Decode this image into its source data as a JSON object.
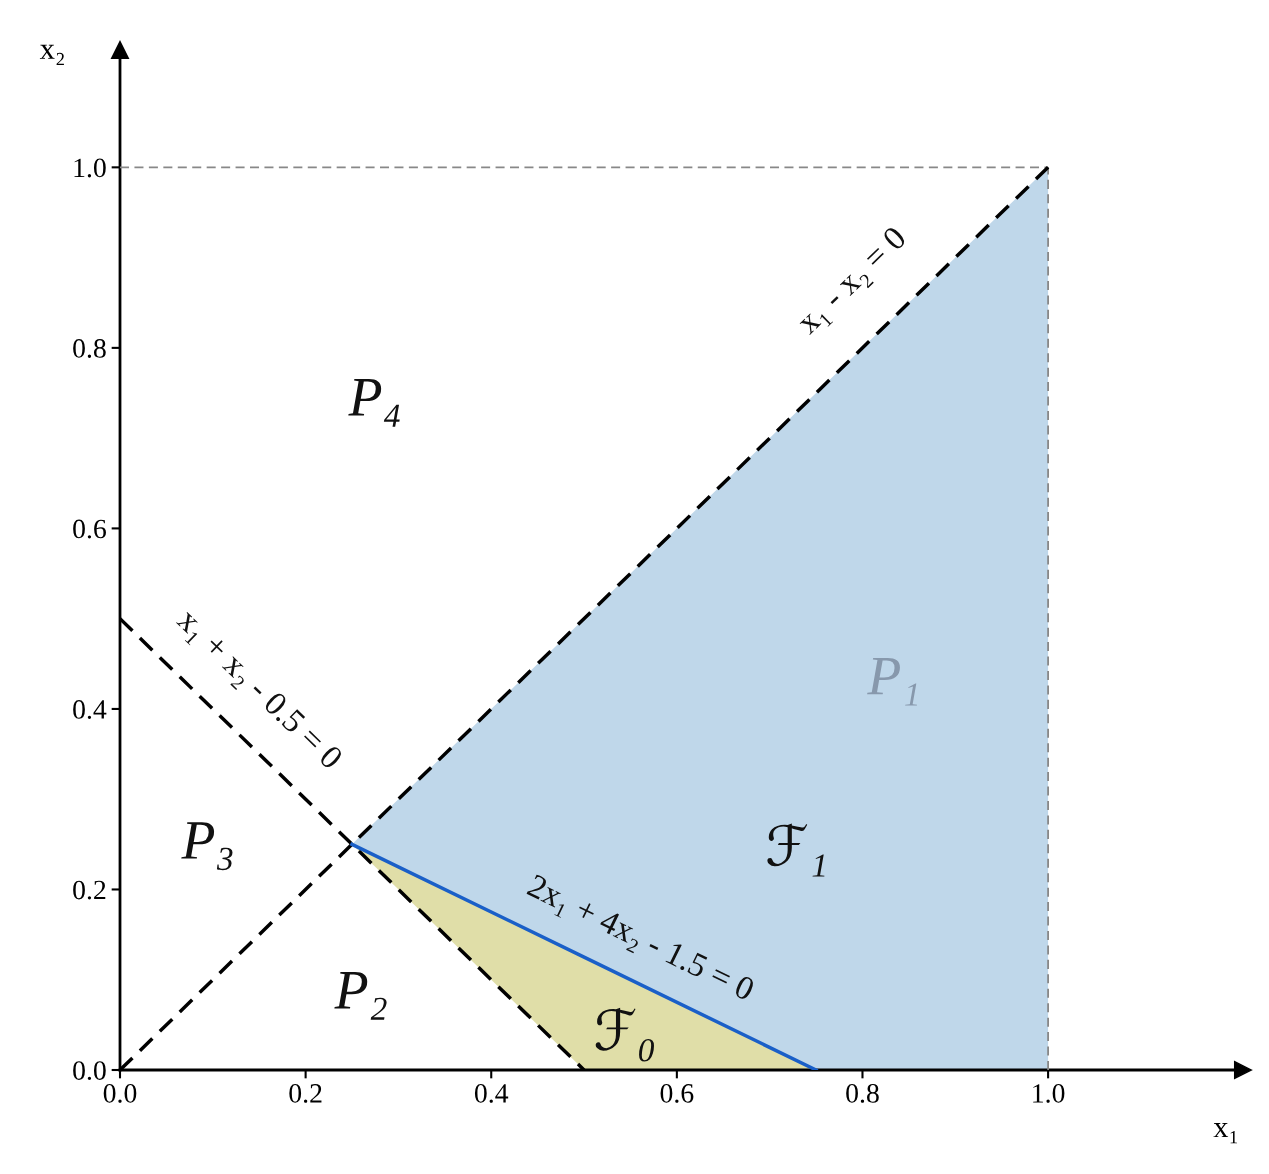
{
  "chart_data": {
    "type": "line",
    "xlabel": "x₁",
    "ylabel": "x₂",
    "xlim": [
      0,
      1.21
    ],
    "ylim": [
      0,
      1.13
    ],
    "xticks": [
      {
        "value": 0,
        "label": "0.0"
      },
      {
        "value": 0.2,
        "label": "0.2"
      },
      {
        "value": 0.4,
        "label": "0.4"
      },
      {
        "value": 0.6,
        "label": "0.6"
      },
      {
        "value": 0.8,
        "label": "0.8"
      },
      {
        "value": 1.0,
        "label": "1.0"
      }
    ],
    "yticks": [
      {
        "value": 0,
        "label": "0.0"
      },
      {
        "value": 0.2,
        "label": "0.2"
      },
      {
        "value": 0.4,
        "label": "0.4"
      },
      {
        "value": 0.6,
        "label": "0.6"
      },
      {
        "value": 0.8,
        "label": "0.8"
      },
      {
        "value": 1.0,
        "label": "1.0"
      }
    ],
    "grid": false,
    "legend": false,
    "series": [
      {
        "color": "#888888",
        "line_style": "dashed",
        "x": [
          0,
          1.0
        ],
        "values": [
          1.0,
          1.0
        ]
      },
      {
        "color": "#888888",
        "line_style": "dashed",
        "x": [
          1.0,
          1.0
        ],
        "values": [
          0,
          1.0
        ]
      },
      {
        "color": "#000000",
        "line_style": "dashed",
        "x": [
          0,
          0.25,
          0.75,
          1.0
        ],
        "values": [
          0,
          0.25,
          0.75,
          1.0
        ],
        "lower": [
          null,
          0.25,
          0,
          0
        ],
        "upper": [
          null,
          0.25,
          0.75,
          1.0
        ]
      },
      {
        "color": "#000000",
        "line_style": "dashed",
        "x": [
          0,
          0.5
        ],
        "values": [
          0.5,
          0
        ]
      },
      {
        "color": "#1a5fc8",
        "line_style": "solid",
        "x": [
          0.25,
          0.5,
          0.75
        ],
        "values": [
          0.25,
          0.125,
          0
        ],
        "lower": [
          0.25,
          0,
          0
        ],
        "upper": [
          0.25,
          0.125,
          0
        ]
      }
    ],
    "annotations": [
      "x₁ - x₂ = 0",
      "x₁ + x₂ - 0.5 = 0",
      "2x₁ + 4x₂ - 1.5 = 0",
      "P₄",
      "P₁",
      "P₃",
      "ℱ₁",
      "P₂",
      "ℱ₀"
    ]
  }
}
